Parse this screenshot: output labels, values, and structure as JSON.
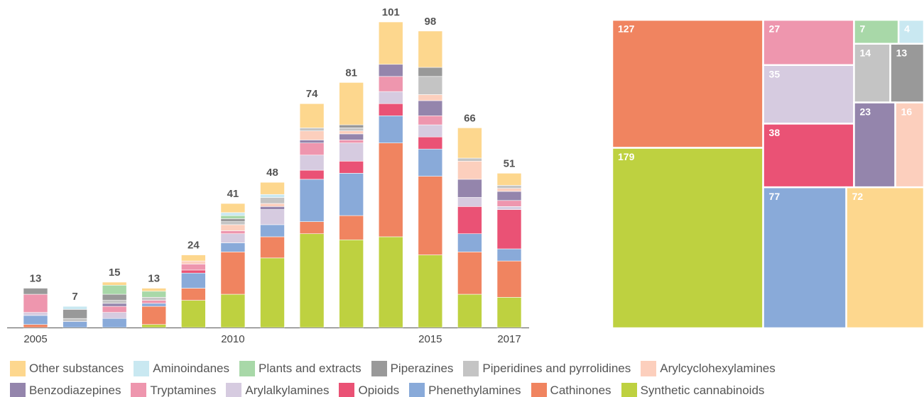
{
  "chart_data": [
    {
      "type": "stacked_bar",
      "categories": [
        2005,
        null,
        null,
        null,
        null,
        2010,
        null,
        null,
        null,
        null,
        2015,
        null,
        2017
      ],
      "totals": [
        13,
        7,
        15,
        13,
        24,
        41,
        48,
        74,
        81,
        101,
        98,
        66,
        51
      ],
      "series": [
        {
          "name": "Other substances",
          "color": "#fdd78e",
          "values": [
            0,
            0,
            1,
            1,
            2,
            3,
            4,
            8,
            14,
            14,
            12,
            10,
            4
          ]
        },
        {
          "name": "Aminoindanes",
          "color": "#c9e8f1",
          "values": [
            0,
            1,
            0,
            0,
            0,
            1,
            1,
            0,
            0,
            0,
            0,
            0,
            0
          ]
        },
        {
          "name": "Plants and extracts",
          "color": "#a8d8a8",
          "values": [
            0,
            0,
            3,
            2,
            0,
            1,
            0,
            0,
            0,
            0,
            0,
            0,
            0
          ]
        },
        {
          "name": "Piperazines",
          "color": "#999999",
          "values": [
            2,
            3,
            2,
            0,
            0,
            1,
            0,
            0,
            1,
            0,
            3,
            0,
            0
          ]
        },
        {
          "name": "Piperidines and pyrrolidines",
          "color": "#c4c4c4",
          "values": [
            0,
            1,
            1,
            1,
            0,
            1,
            2,
            1,
            1,
            0,
            6,
            1,
            1
          ]
        },
        {
          "name": "Arylcyclohexylamines",
          "color": "#fccfbd",
          "values": [
            0,
            0,
            0,
            0,
            1,
            2,
            1,
            3,
            1,
            0,
            2,
            6,
            1
          ]
        },
        {
          "name": "Benzodiazepines",
          "color": "#9485ac",
          "values": [
            0,
            0,
            1,
            0,
            0,
            0,
            1,
            1,
            2,
            4,
            5,
            6,
            3
          ]
        },
        {
          "name": "Tryptamines",
          "color": "#ee96ae",
          "values": [
            6,
            0,
            2,
            1,
            2,
            1,
            0,
            4,
            1,
            5,
            3,
            0,
            2
          ]
        },
        {
          "name": "Arylalkylamines",
          "color": "#d6cbe0",
          "values": [
            1,
            0,
            2,
            0,
            0,
            3,
            5,
            5,
            6,
            4,
            4,
            3,
            1
          ]
        },
        {
          "name": "Opioids",
          "color": "#ea5275",
          "values": [
            0,
            0,
            0,
            0,
            1,
            0,
            0,
            3,
            4,
            4,
            4,
            9,
            13
          ]
        },
        {
          "name": "Phenethylamines",
          "color": "#89aad9",
          "values": [
            3,
            2,
            3,
            1,
            5,
            3,
            4,
            14,
            14,
            9,
            9,
            6,
            4
          ]
        },
        {
          "name": "Cathinones",
          "color": "#f08460",
          "values": [
            1,
            0,
            0,
            6,
            4,
            14,
            7,
            4,
            8,
            31,
            26,
            14,
            12
          ]
        },
        {
          "name": "Synthetic cannabinoids",
          "color": "#bed140",
          "values": [
            0,
            0,
            0,
            1,
            9,
            11,
            23,
            31,
            29,
            30,
            24,
            11,
            10
          ]
        }
      ]
    },
    {
      "type": "treemap",
      "values": [
        72,
        4,
        7,
        13,
        14,
        16,
        23,
        27,
        35,
        38,
        77,
        127,
        179
      ]
    }
  ]
}
